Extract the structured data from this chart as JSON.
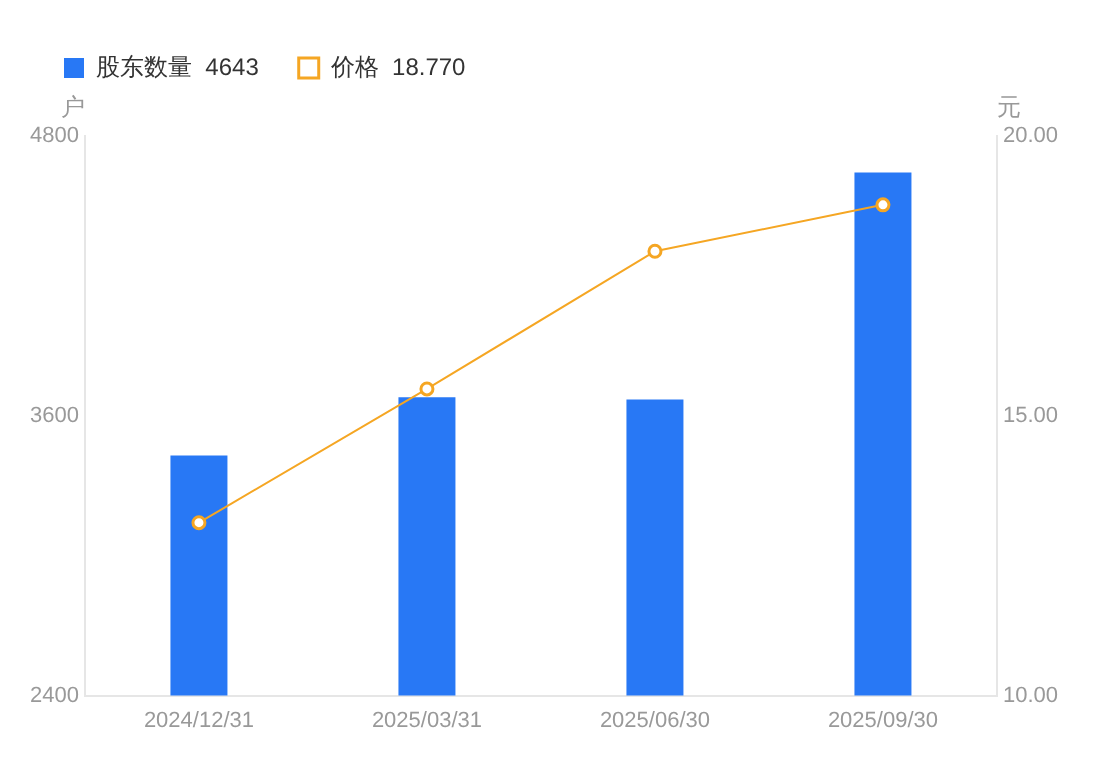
{
  "chart_data": {
    "type": "bar",
    "categories": [
      "2024/12/31",
      "2025/03/31",
      "2025/06/30",
      "2025/09/30"
    ],
    "series": [
      {
        "name": "股东数量  4643",
        "color": "#2878f5",
        "values": [
          3430,
          3680,
          3670,
          4643
        ]
      },
      {
        "name": "价格  18.770",
        "type": "line",
        "axis": "y2",
        "color": "#f5a623",
        "values": [
          13.09,
          15.48,
          17.94,
          18.77
        ]
      }
    ],
    "ylabel": "户",
    "y2label": "元",
    "ylim": [
      2400,
      4800
    ],
    "yticks": [
      2400,
      3600,
      4800
    ],
    "y2lim": [
      10,
      20
    ],
    "y2ticks": [
      {
        "value": 10,
        "label": "10.00"
      },
      {
        "value": 15,
        "label": "15.00"
      },
      {
        "value": 20,
        "label": "20.00"
      }
    ],
    "grid": false,
    "legend": "top left",
    "marker": "circle",
    "line_style": "solid"
  }
}
